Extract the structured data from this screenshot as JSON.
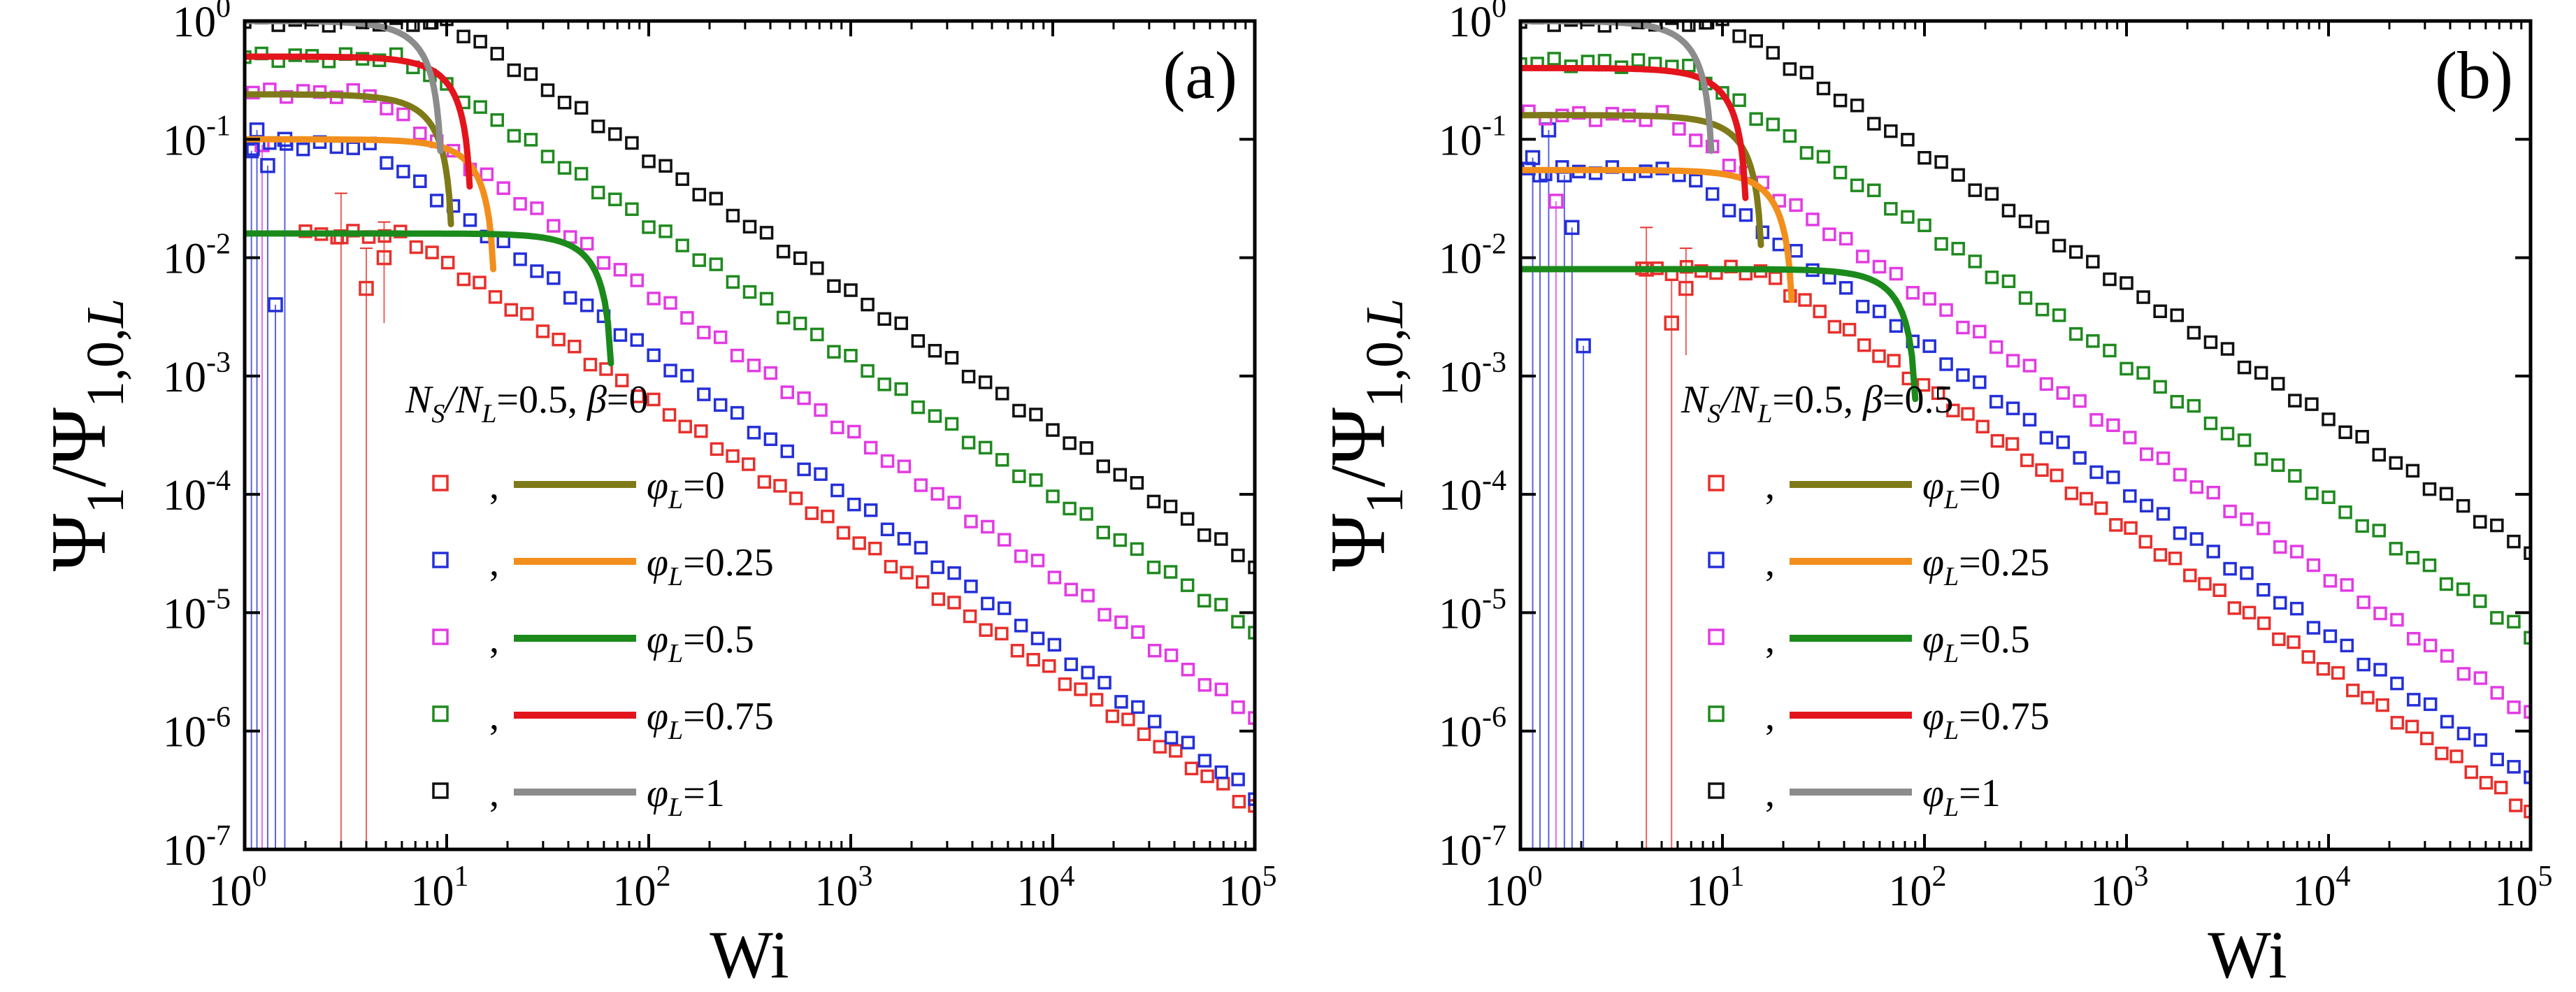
{
  "figure": {
    "xlabel": "Wi",
    "ylabel_main": "Ψ",
    "ylabel_sub1": "1",
    "ylabel_slash": "/Ψ",
    "ylabel_sub2": "1,0,",
    "ylabel_sub3": "L"
  },
  "colors": {
    "red": "#e8302c",
    "blue": "#2430d8",
    "magenta": "#e33be4",
    "green": "#1f8a1f",
    "black": "#111111",
    "olive": "#7f7a19",
    "orange": "#f28f1c",
    "dkgreen": "#1b8a1b",
    "lred": "#e3141c",
    "gray": "#8c8c8c"
  },
  "chart_data": [
    {
      "type": "scatter",
      "panel_label": "(a)",
      "xscale": "log",
      "yscale": "log",
      "xlim": [
        1,
        100000
      ],
      "ylim": [
        1e-07,
        1
      ],
      "x_tick_labels": [
        [
          "10",
          "0"
        ],
        [
          "10",
          "1"
        ],
        [
          "10",
          "2"
        ],
        [
          "10",
          "3"
        ],
        [
          "10",
          "4"
        ],
        [
          "10",
          "5"
        ]
      ],
      "y_tick_labels": [
        [
          "10",
          "0"
        ],
        [
          "10",
          "-1"
        ],
        [
          "10",
          "-2"
        ],
        [
          "10",
          "-3"
        ],
        [
          "10",
          "-4"
        ],
        [
          "10",
          "-5"
        ],
        [
          "10",
          "-6"
        ],
        [
          "10",
          "-7"
        ]
      ],
      "legend_title": {
        "ns": "N",
        "ns_sub": "S",
        "slash": "/N",
        "nl_sub": "L",
        "eq": "=0.5, ",
        "beta": "β",
        "beta_eq": "=0"
      },
      "legend": [
        {
          "marker": "red",
          "line": "olive",
          "comma": ",",
          "phi": "φ",
          "sub": "L",
          "value": "=0"
        },
        {
          "marker": "blue",
          "line": "orange",
          "comma": ",",
          "phi": "φ",
          "sub": "L",
          "value": "=0.25"
        },
        {
          "marker": "magenta",
          "line": "dkgreen",
          "comma": ",",
          "phi": "φ",
          "sub": "L",
          "value": "=0.5"
        },
        {
          "marker": "green",
          "line": "lred",
          "comma": ",",
          "phi": "φ",
          "sub": "L",
          "value": "=0.75"
        },
        {
          "marker": "black",
          "line": "gray",
          "comma": ",",
          "phi": "φ",
          "sub": "L",
          "value": "=1"
        }
      ],
      "series": [
        {
          "name": "φL=0 sim",
          "color": "red",
          "plateau": 0.016,
          "plateau_end": 6,
          "slope": -1.15,
          "xmin": 2,
          "hi": [
            [
              8,
              0.02
            ]
          ]
        },
        {
          "name": "φL=0.25 sim",
          "color": "blue",
          "plateau": 0.09,
          "plateau_end": 4,
          "slope": -1.25,
          "xmin": 1.1
        },
        {
          "name": "φL=0.5 sim",
          "color": "magenta",
          "plateau": 0.25,
          "plateau_end": 4,
          "slope": -1.2,
          "xmin": 1.1
        },
        {
          "name": "φL=0.75 sim",
          "color": "green",
          "plateau": 0.5,
          "plateau_end": 6,
          "slope": -1.15,
          "xmin": 1.0
        },
        {
          "name": "φL=1 sim",
          "color": "black",
          "plateau": 1.0,
          "plateau_end": 10,
          "slope": -1.15,
          "xmin": 1.0
        }
      ],
      "curves": [
        {
          "name": "φL=0 theory",
          "color": "olive",
          "plateau": 0.24,
          "xc": 10.5
        },
        {
          "name": "φL=0.25 theory",
          "color": "orange",
          "plateau": 0.1,
          "xc": 17
        },
        {
          "name": "φL=0.5 theory",
          "color": "dkgreen",
          "plateau": 0.016,
          "xc": 65
        },
        {
          "name": "φL=0.75 theory",
          "color": "lred",
          "plateau": 0.5,
          "xc": 13
        },
        {
          "name": "φL=1 theory",
          "color": "gray",
          "plateau": 1.0,
          "xc": 9.3
        }
      ],
      "errorbars": [
        {
          "x": 1.08,
          "y": 0.08,
          "color": "blue",
          "lo": 1e-07
        },
        {
          "x": 1.15,
          "y": 0.12,
          "color": "blue",
          "lo": 1e-07
        },
        {
          "x": 1.22,
          "y": 0.09,
          "color": "magenta",
          "lo": 1e-07
        },
        {
          "x": 1.3,
          "y": 0.06,
          "color": "blue",
          "lo": 1e-07
        },
        {
          "x": 1.42,
          "y": 0.004,
          "color": "blue",
          "lo": 1e-07
        },
        {
          "x": 1.58,
          "y": 0.1,
          "color": "blue",
          "lo": 1e-07
        },
        {
          "x": 3.0,
          "y": 0.015,
          "color": "red",
          "lo": 1e-07,
          "hi": 0.035
        },
        {
          "x": 4.0,
          "y": 0.0055,
          "color": "red",
          "lo": 1e-07,
          "hi": 0.012
        },
        {
          "x": 4.9,
          "y": 0.01,
          "color": "red",
          "lo": 0.0028,
          "hi": 0.02
        }
      ]
    },
    {
      "type": "scatter",
      "panel_label": "(b)",
      "xscale": "log",
      "yscale": "log",
      "xlim": [
        1,
        100000
      ],
      "ylim": [
        1e-07,
        1
      ],
      "x_tick_labels": [
        [
          "10",
          "0"
        ],
        [
          "10",
          "1"
        ],
        [
          "10",
          "2"
        ],
        [
          "10",
          "3"
        ],
        [
          "10",
          "4"
        ],
        [
          "10",
          "5"
        ]
      ],
      "y_tick_labels": [
        [
          "10",
          "0"
        ],
        [
          "10",
          "-1"
        ],
        [
          "10",
          "-2"
        ],
        [
          "10",
          "-3"
        ],
        [
          "10",
          "-4"
        ],
        [
          "10",
          "-5"
        ],
        [
          "10",
          "-6"
        ],
        [
          "10",
          "-7"
        ]
      ],
      "legend_title": {
        "ns": "N",
        "ns_sub": "S",
        "slash": "/N",
        "nl_sub": "L",
        "eq": "=0.5, ",
        "beta": "β",
        "beta_eq": "=0.5"
      },
      "legend": [
        {
          "marker": "red",
          "line": "olive",
          "comma": ",",
          "phi": "φ",
          "sub": "L",
          "value": "=0"
        },
        {
          "marker": "blue",
          "line": "orange",
          "comma": ",",
          "phi": "φ",
          "sub": "L",
          "value": "=0.25"
        },
        {
          "marker": "magenta",
          "line": "dkgreen",
          "comma": ",",
          "phi": "φ",
          "sub": "L",
          "value": "=0.5"
        },
        {
          "marker": "green",
          "line": "lred",
          "comma": ",",
          "phi": "φ",
          "sub": "L",
          "value": "=0.75"
        },
        {
          "marker": "black",
          "line": "gray",
          "comma": ",",
          "phi": "φ",
          "sub": "L",
          "value": "=1"
        }
      ],
      "series": [
        {
          "name": "φL=0 sim",
          "color": "red",
          "plateau": 0.008,
          "plateau_end": 15,
          "slope": -1.2,
          "xmin": 4
        },
        {
          "name": "φL=0.25 sim",
          "color": "blue",
          "plateau": 0.055,
          "plateau_end": 6,
          "slope": -1.22,
          "xmin": 1.1
        },
        {
          "name": "φL=0.5 sim",
          "color": "magenta",
          "plateau": 0.16,
          "plateau_end": 5,
          "slope": -1.18,
          "xmin": 1.1
        },
        {
          "name": "φL=0.75 sim",
          "color": "green",
          "plateau": 0.45,
          "plateau_end": 6,
          "slope": -1.15,
          "xmin": 1.0
        },
        {
          "name": "φL=1 sim",
          "color": "black",
          "plateau": 1.0,
          "plateau_end": 10,
          "slope": -1.12,
          "xmin": 1.0
        }
      ],
      "curves": [
        {
          "name": "φL=0 theory",
          "color": "olive",
          "plateau": 0.16,
          "xc": 15.5
        },
        {
          "name": "φL=0.25 theory",
          "color": "orange",
          "plateau": 0.055,
          "xc": 22
        },
        {
          "name": "φL=0.5 theory",
          "color": "dkgreen",
          "plateau": 0.008,
          "xc": 90
        },
        {
          "name": "φL=0.75 theory",
          "color": "lred",
          "plateau": 0.4,
          "xc": 13
        },
        {
          "name": "φL=1 theory",
          "color": "gray",
          "plateau": 1.0,
          "xc": 8.8
        }
      ],
      "errorbars": [
        {
          "x": 1.15,
          "y": 0.07,
          "color": "blue",
          "lo": 1e-07
        },
        {
          "x": 1.25,
          "y": 0.05,
          "color": "blue",
          "lo": 1e-07
        },
        {
          "x": 1.38,
          "y": 0.12,
          "color": "blue",
          "lo": 1e-07
        },
        {
          "x": 1.5,
          "y": 0.03,
          "color": "magenta",
          "lo": 1e-07
        },
        {
          "x": 1.65,
          "y": 0.05,
          "color": "blue",
          "lo": 1e-07
        },
        {
          "x": 1.8,
          "y": 0.018,
          "color": "blue",
          "lo": 1e-07
        },
        {
          "x": 2.05,
          "y": 0.0018,
          "color": "blue",
          "lo": 1e-07
        },
        {
          "x": 4.2,
          "y": 0.008,
          "color": "red",
          "lo": 1e-07,
          "hi": 0.018
        },
        {
          "x": 5.6,
          "y": 0.0028,
          "color": "red",
          "lo": 1e-07,
          "hi": 0.0065
        },
        {
          "x": 6.6,
          "y": 0.0055,
          "color": "red",
          "lo": 0.0015,
          "hi": 0.012
        }
      ]
    }
  ]
}
